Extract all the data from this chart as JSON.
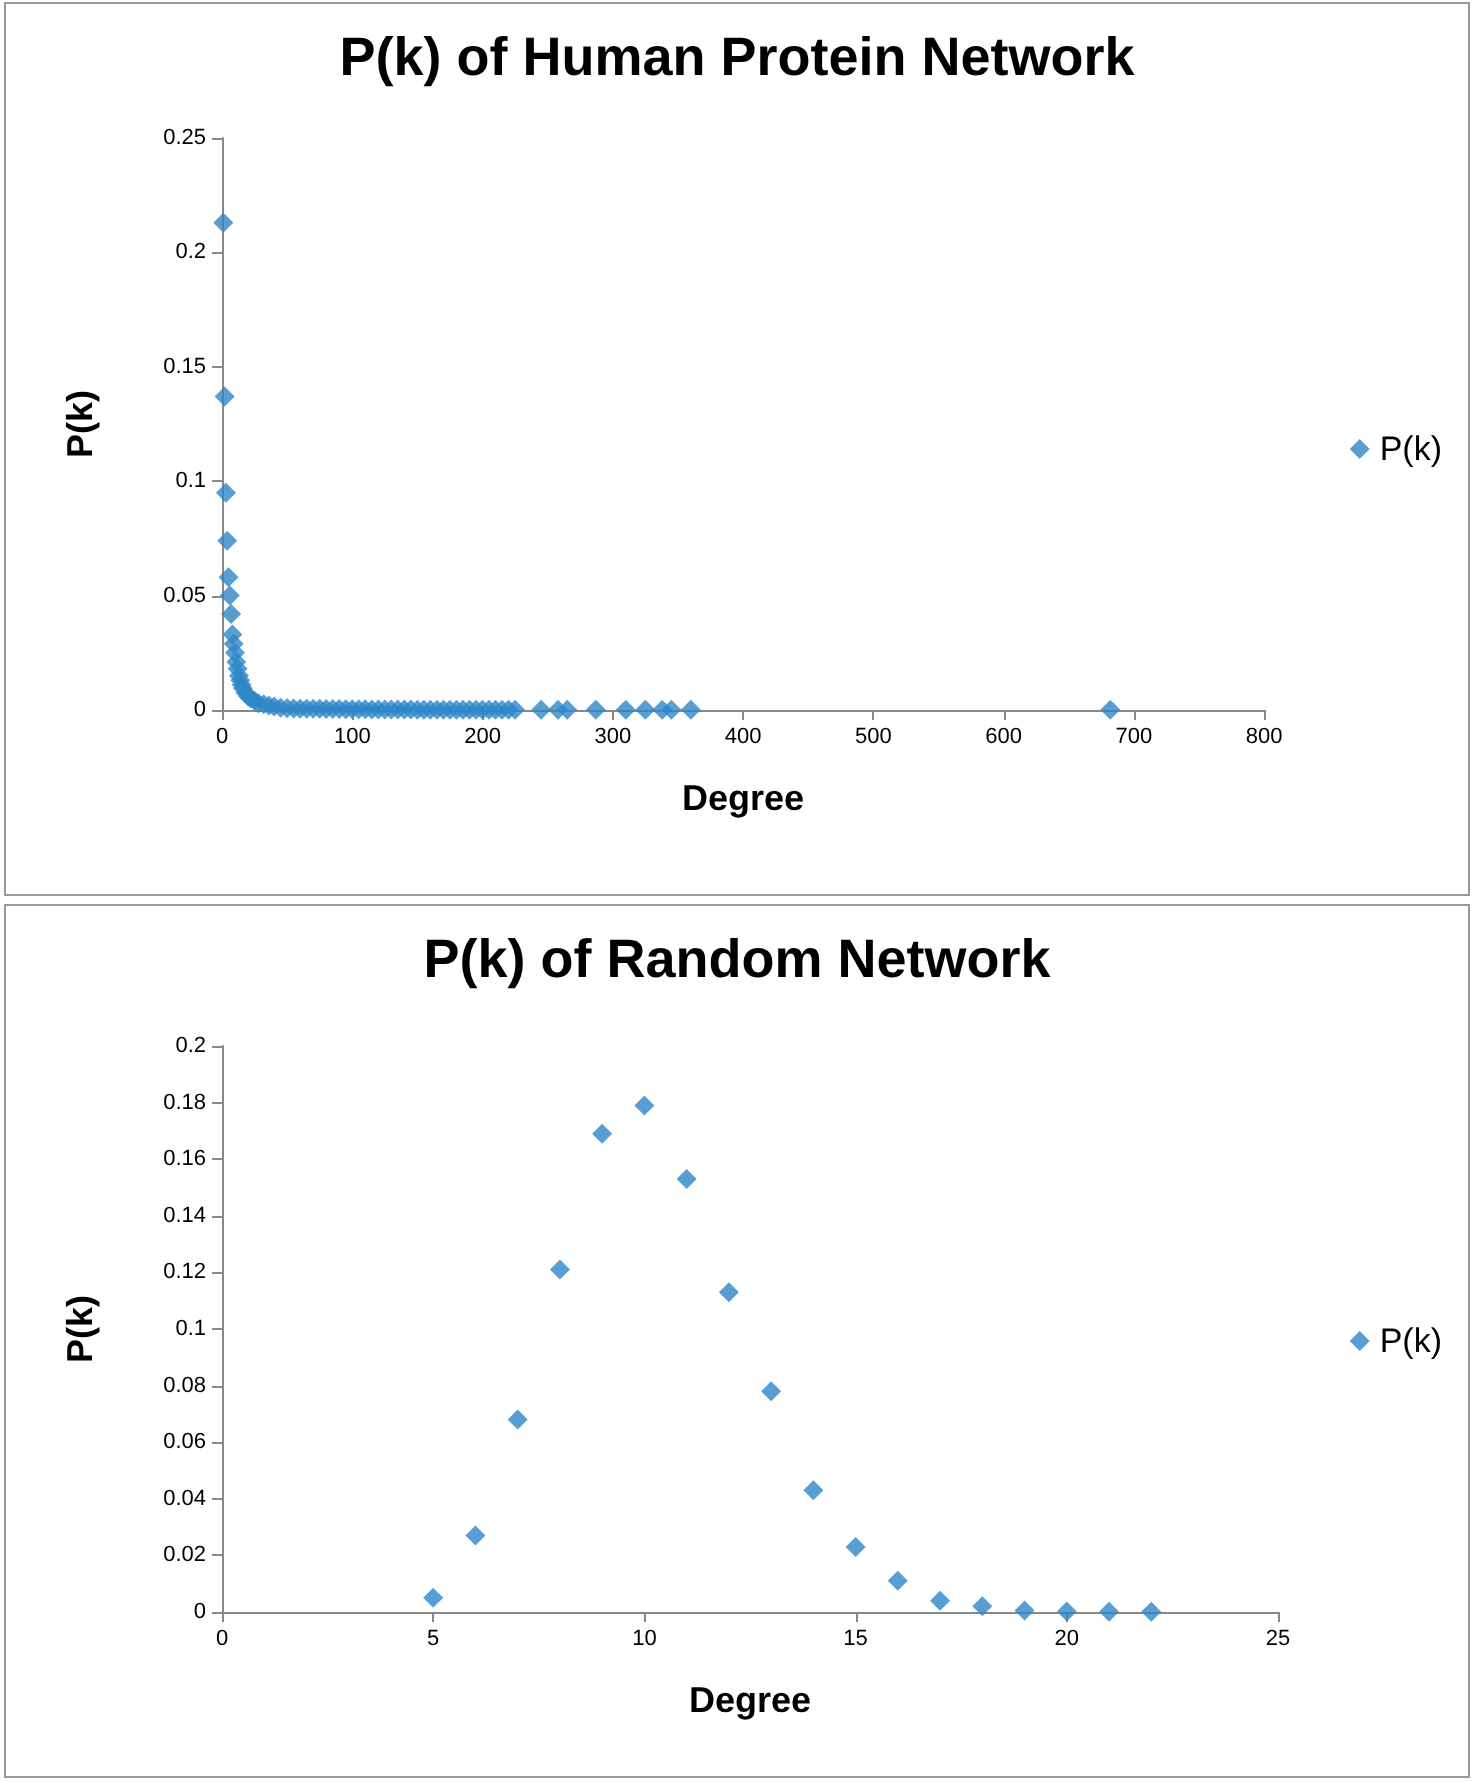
{
  "chart_data": [
    {
      "type": "scatter",
      "title": "P(k) of Human Protein Network",
      "xlabel": "Degree",
      "ylabel": "P(k)",
      "xlim": [
        0,
        800
      ],
      "xticks": [
        0,
        100,
        200,
        300,
        400,
        500,
        600,
        700,
        800
      ],
      "ylim": [
        0,
        0.25
      ],
      "yticks": [
        0,
        0.05,
        0.1,
        0.15,
        0.2,
        0.25
      ],
      "grid": false,
      "legend": "right",
      "marker": "diamond",
      "series": [
        {
          "name": "P(k)",
          "color": "#2e86c8",
          "x": [
            1,
            2,
            3,
            4,
            5,
            6,
            7,
            8,
            9,
            10,
            11,
            12,
            13,
            14,
            15,
            16,
            18,
            20,
            22,
            25,
            28,
            32,
            36,
            40,
            45,
            50,
            55,
            60,
            65,
            70,
            75,
            80,
            85,
            90,
            95,
            100,
            105,
            110,
            115,
            120,
            125,
            130,
            135,
            140,
            145,
            150,
            155,
            160,
            165,
            170,
            175,
            180,
            185,
            190,
            195,
            200,
            205,
            210,
            215,
            220,
            225,
            245,
            258,
            265,
            287,
            310,
            325,
            338,
            345,
            360,
            682
          ],
          "values": [
            0.213,
            0.137,
            0.095,
            0.074,
            0.058,
            0.05,
            0.042,
            0.033,
            0.029,
            0.025,
            0.021,
            0.018,
            0.015,
            0.013,
            0.011,
            0.0095,
            0.0075,
            0.006,
            0.005,
            0.004,
            0.003,
            0.0025,
            0.002,
            0.0015,
            0.001,
            0.0008,
            0.0007,
            0.0006,
            0.0006,
            0.0005,
            0.0005,
            0.0004,
            0.0004,
            0.0004,
            0.0003,
            0.0003,
            0.0003,
            0.0003,
            0.0002,
            0.0002,
            0.0002,
            0.0002,
            0.0002,
            0.0002,
            0.0002,
            0.0001,
            0.0001,
            0.0001,
            0.0001,
            0.0001,
            0.0001,
            0.0001,
            0.0001,
            0.0001,
            0.0001,
            0.0001,
            0.0001,
            0.0001,
            0.0001,
            0.0001,
            0.0001,
            0.0001,
            0.0001,
            0.0001,
            0.0001,
            0.0001,
            0.0001,
            0.0001,
            0.0001,
            0.0001,
            0.0001
          ]
        }
      ]
    },
    {
      "type": "scatter",
      "title": "P(k) of Random Network",
      "xlabel": "Degree",
      "ylabel": "P(k)",
      "xlim": [
        0,
        25
      ],
      "xticks": [
        0,
        5,
        10,
        15,
        20,
        25
      ],
      "ylim": [
        0,
        0.2
      ],
      "yticks": [
        0,
        0.02,
        0.04,
        0.06,
        0.08,
        0.1,
        0.12,
        0.14,
        0.16,
        0.18,
        0.2
      ],
      "grid": false,
      "legend": "right",
      "marker": "diamond",
      "series": [
        {
          "name": "P(k)",
          "color": "#2e86c8",
          "x": [
            5,
            6,
            7,
            8,
            9,
            10,
            11,
            12,
            13,
            14,
            15,
            16,
            17,
            18,
            19,
            20,
            21,
            22
          ],
          "values": [
            0.005,
            0.027,
            0.068,
            0.121,
            0.169,
            0.179,
            0.153,
            0.113,
            0.078,
            0.043,
            0.023,
            0.011,
            0.004,
            0.002,
            0.0005,
            0.0002,
            0.0001,
            0.0001
          ]
        }
      ]
    }
  ]
}
